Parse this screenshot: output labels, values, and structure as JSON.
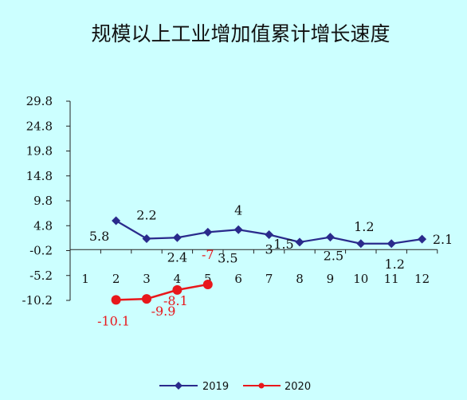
{
  "chart_data": {
    "type": "line",
    "title": "规模以上工业增加值累计增长速度",
    "categories": [
      "1",
      "2",
      "3",
      "4",
      "5",
      "6",
      "7",
      "8",
      "9",
      "10",
      "11",
      "12"
    ],
    "y_ticks": [
      "29.8",
      "24.8",
      "19.8",
      "14.8",
      "9.8",
      "4.8",
      "-0.2",
      "-5.2",
      "-10.2"
    ],
    "ylim": [
      -10.2,
      29.8
    ],
    "grid": false,
    "legend_position": "bottom",
    "series": [
      {
        "name": "2019",
        "color": "#2a2a8c",
        "marker": "diamond",
        "values": [
          null,
          5.8,
          2.2,
          2.4,
          3.5,
          4,
          3,
          1.5,
          2.5,
          1.2,
          1.2,
          2.1
        ],
        "labels": [
          null,
          "5.8",
          "2.2",
          "2.4",
          "3.5",
          "4",
          "3",
          "1.5",
          "2.5",
          "1.2",
          "1.2",
          "2.1"
        ]
      },
      {
        "name": "2020",
        "color": "#e8171b",
        "marker": "circle",
        "values": [
          null,
          -10.1,
          -9.9,
          -8.1,
          -7,
          null,
          null,
          null,
          null,
          null,
          null,
          null
        ],
        "labels": [
          null,
          "-10.1",
          "-9.9",
          "-8.1",
          "-7",
          null,
          null,
          null,
          null,
          null,
          null,
          null
        ]
      }
    ]
  }
}
